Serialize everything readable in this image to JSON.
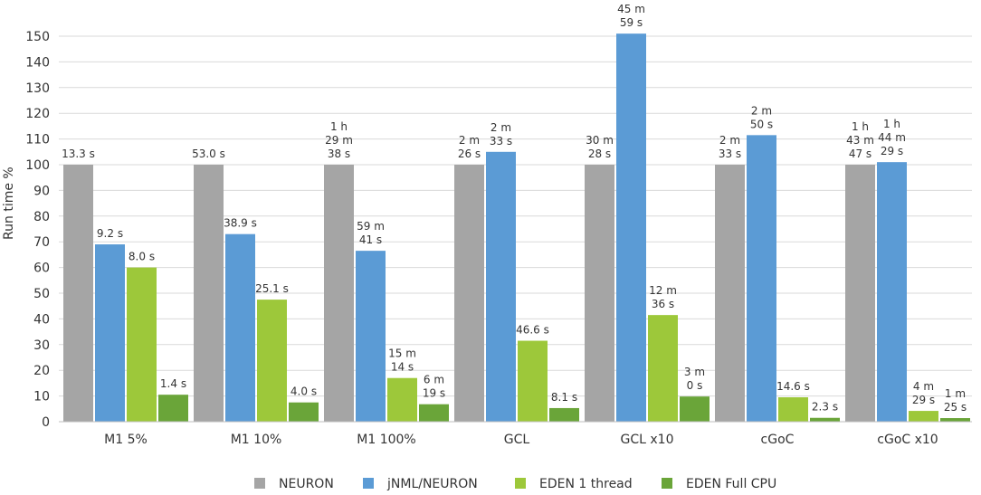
{
  "chart_data": {
    "type": "bar",
    "title": "",
    "xlabel": "",
    "ylabel": "Run time %",
    "ylim": [
      0,
      155
    ],
    "yticks": [
      0,
      10,
      20,
      30,
      40,
      50,
      60,
      70,
      80,
      90,
      100,
      110,
      120,
      130,
      140,
      150
    ],
    "grid": true,
    "legend_position": "bottom",
    "categories": [
      "M1 5%",
      "M1 10%",
      "M1 100%",
      "GCL",
      "GCL x10",
      "cGoC",
      "cGoC x10"
    ],
    "series": [
      {
        "name": "NEURON",
        "color": "#a5a5a5",
        "values": [
          100,
          100,
          100,
          100,
          100,
          100,
          100
        ],
        "labels": [
          [
            "13.3 s"
          ],
          [
            "53.0 s"
          ],
          [
            "1 h",
            "29 m",
            "38 s"
          ],
          [
            "2 m",
            "26 s"
          ],
          [
            "30 m",
            "28 s"
          ],
          [
            "2 m",
            "33 s"
          ],
          [
            "1 h",
            "43 m",
            "47 s"
          ]
        ]
      },
      {
        "name": "jNML/NEURON",
        "color": "#5b9bd5",
        "values": [
          69,
          73,
          66.5,
          105,
          151,
          111.5,
          101
        ],
        "labels": [
          [
            "9.2 s"
          ],
          [
            "38.9 s"
          ],
          [
            "59 m",
            "41 s"
          ],
          [
            "2 m",
            "33 s"
          ],
          [
            "45 m",
            "59 s"
          ],
          [
            "2 m",
            "50 s"
          ],
          [
            "1 h",
            "44 m",
            "29 s"
          ]
        ]
      },
      {
        "name": "EDEN 1 thread",
        "color": "#9dc83a",
        "values": [
          60,
          47.5,
          17,
          31.5,
          41.5,
          9.5,
          4.2
        ],
        "labels": [
          [
            "8.0 s"
          ],
          [
            "25.1 s"
          ],
          [
            "15 m",
            "14 s"
          ],
          [
            "46.6 s"
          ],
          [
            "12 m",
            "36 s"
          ],
          [
            "14.6 s"
          ],
          [
            "4 m",
            "29 s"
          ]
        ]
      },
      {
        "name": "EDEN Full CPU",
        "color": "#6aa539",
        "values": [
          10.5,
          7.5,
          6.8,
          5.3,
          9.8,
          1.5,
          1.4
        ],
        "labels": [
          [
            "1.4 s"
          ],
          [
            "4.0 s"
          ],
          [
            "6 m",
            "19 s"
          ],
          [
            "8.1 s"
          ],
          [
            "3 m",
            "0 s"
          ],
          [
            "2.3 s"
          ],
          [
            "1 m",
            "25 s"
          ]
        ]
      }
    ]
  }
}
